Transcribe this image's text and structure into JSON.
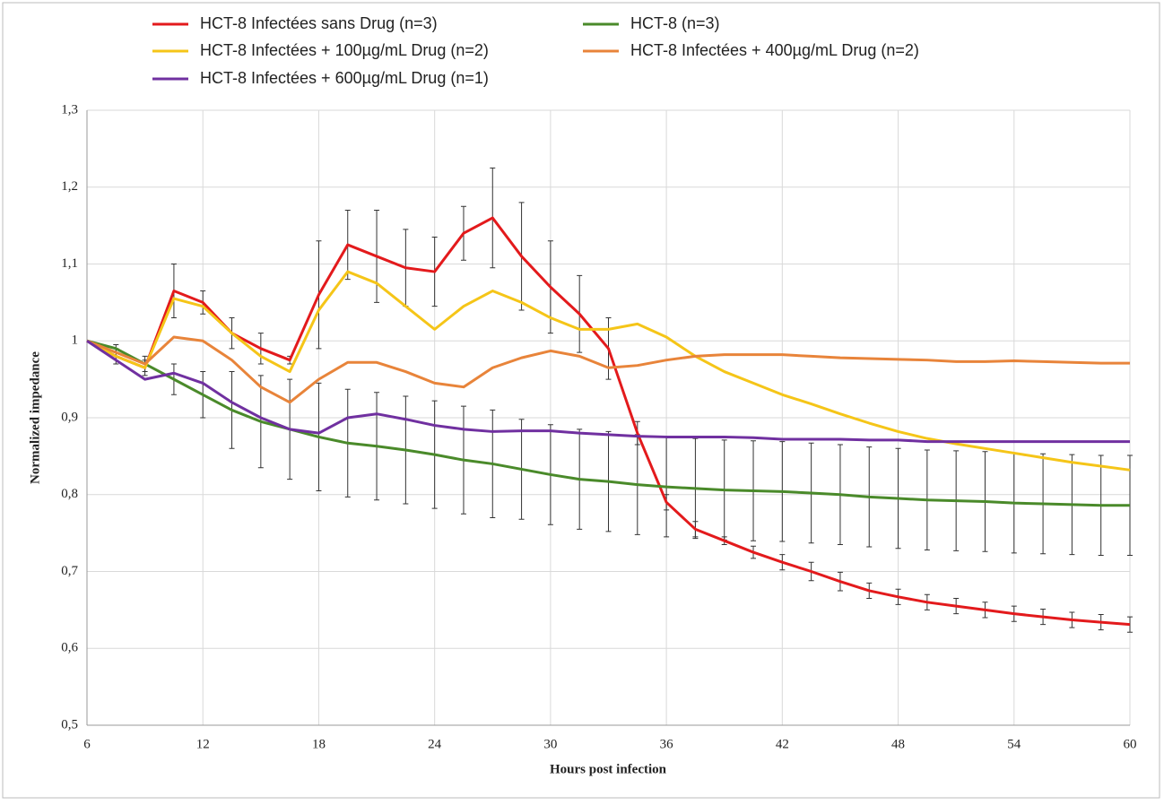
{
  "chart_data": {
    "type": "line",
    "x_label": "Hours post infection",
    "y_label": "Normalized impedance",
    "x": [
      6,
      7.5,
      9,
      10.5,
      12,
      13.5,
      15,
      16.5,
      18,
      19.5,
      21,
      22.5,
      24,
      25.5,
      27,
      28.5,
      30,
      31.5,
      33,
      34.5,
      36,
      37.5,
      39,
      40.5,
      42,
      43.5,
      45,
      46.5,
      48,
      49.5,
      51,
      52.5,
      54,
      55.5,
      57,
      58.5,
      60
    ],
    "series": [
      {
        "name": "HCT-8 Infectées sans Drug (n=3)",
        "color": "#e31a1c",
        "values": [
          1.0,
          0.98,
          0.965,
          1.065,
          1.05,
          1.01,
          0.99,
          0.975,
          1.06,
          1.125,
          1.11,
          1.095,
          1.09,
          1.14,
          1.16,
          1.11,
          1.07,
          1.035,
          0.99,
          0.88,
          0.79,
          0.755,
          0.74,
          0.725,
          0.712,
          0.7,
          0.687,
          0.675,
          0.667,
          0.66,
          0.655,
          0.65,
          0.645,
          0.641,
          0.637,
          0.634,
          0.631
        ],
        "errors": [
          0,
          0.01,
          0.01,
          0.035,
          0.015,
          0.02,
          0.02,
          0.005,
          0.07,
          0.045,
          0.06,
          0.05,
          0.045,
          0.035,
          0.065,
          0.07,
          0.06,
          0.05,
          0.04,
          0.015,
          0.01,
          0.01,
          0.005,
          0.008,
          0.01,
          0.012,
          0.012,
          0.01,
          0.01,
          0.01,
          0.01,
          0.01,
          0.01,
          0.01,
          0.01,
          0.01,
          0.01
        ]
      },
      {
        "name": "HCT-8 (n=3)",
        "color": "#4a8a2a",
        "values": [
          1.0,
          0.99,
          0.97,
          0.95,
          0.93,
          0.91,
          0.895,
          0.885,
          0.875,
          0.867,
          0.863,
          0.858,
          0.852,
          0.845,
          0.84,
          0.833,
          0.826,
          0.82,
          0.817,
          0.813,
          0.81,
          0.808,
          0.806,
          0.805,
          0.804,
          0.802,
          0.8,
          0.797,
          0.795,
          0.793,
          0.792,
          0.791,
          0.789,
          0.788,
          0.787,
          0.786,
          0.786
        ],
        "errors": [
          0,
          0.005,
          0.01,
          0.02,
          0.03,
          0.05,
          0.06,
          0.065,
          0.07,
          0.07,
          0.07,
          0.07,
          0.07,
          0.07,
          0.07,
          0.065,
          0.065,
          0.065,
          0.065,
          0.065,
          0.065,
          0.065,
          0.065,
          0.065,
          0.065,
          0.065,
          0.065,
          0.065,
          0.065,
          0.065,
          0.065,
          0.065,
          0.065,
          0.065,
          0.065,
          0.065,
          0.065
        ]
      },
      {
        "name": "HCT-8 Infectées + 100µg/mL Drug (n=2)",
        "color": "#f5c518",
        "values": [
          1.0,
          0.98,
          0.965,
          1.055,
          1.045,
          1.01,
          0.98,
          0.96,
          1.04,
          1.09,
          1.075,
          1.045,
          1.015,
          1.045,
          1.065,
          1.05,
          1.03,
          1.015,
          1.015,
          1.022,
          1.005,
          0.98,
          0.96,
          0.945,
          0.93,
          0.918,
          0.905,
          0.893,
          0.882,
          0.873,
          0.866,
          0.86,
          0.854,
          0.848,
          0.842,
          0.837,
          0.832
        ]
      },
      {
        "name": "HCT-8 Infectées + 400µg/mL Drug (n=2)",
        "color": "#e8843a",
        "values": [
          1.0,
          0.985,
          0.97,
          1.005,
          1.0,
          0.975,
          0.94,
          0.92,
          0.95,
          0.972,
          0.972,
          0.96,
          0.945,
          0.94,
          0.965,
          0.978,
          0.987,
          0.98,
          0.965,
          0.968,
          0.975,
          0.98,
          0.982,
          0.982,
          0.982,
          0.98,
          0.978,
          0.977,
          0.976,
          0.975,
          0.973,
          0.973,
          0.974,
          0.973,
          0.972,
          0.971,
          0.971
        ]
      },
      {
        "name": "HCT-8 Infectées + 600µg/mL Drug (n=1)",
        "color": "#7030a0",
        "values": [
          1.0,
          0.975,
          0.95,
          0.958,
          0.945,
          0.92,
          0.9,
          0.885,
          0.88,
          0.9,
          0.905,
          0.898,
          0.89,
          0.885,
          0.882,
          0.883,
          0.883,
          0.88,
          0.878,
          0.876,
          0.875,
          0.875,
          0.875,
          0.874,
          0.872,
          0.872,
          0.872,
          0.871,
          0.871,
          0.869,
          0.869,
          0.869,
          0.869,
          0.869,
          0.869,
          0.869,
          0.869
        ]
      }
    ],
    "xlim": [
      6,
      60
    ],
    "xticks": [
      6,
      12,
      18,
      24,
      30,
      36,
      42,
      48,
      54,
      60
    ],
    "ylim": [
      0.5,
      1.3
    ],
    "yticks": [
      {
        "value": 0.5,
        "label": "0,5"
      },
      {
        "value": 0.6,
        "label": "0,6"
      },
      {
        "value": 0.7,
        "label": "0,7"
      },
      {
        "value": 0.8,
        "label": "0,8"
      },
      {
        "value": 0.9,
        "label": "0,9"
      },
      1,
      {
        "value": 1.1,
        "label": "1,1"
      },
      {
        "value": 1.2,
        "label": "1,2"
      },
      {
        "value": 1.3,
        "label": "1,3"
      }
    ],
    "grid": true
  }
}
